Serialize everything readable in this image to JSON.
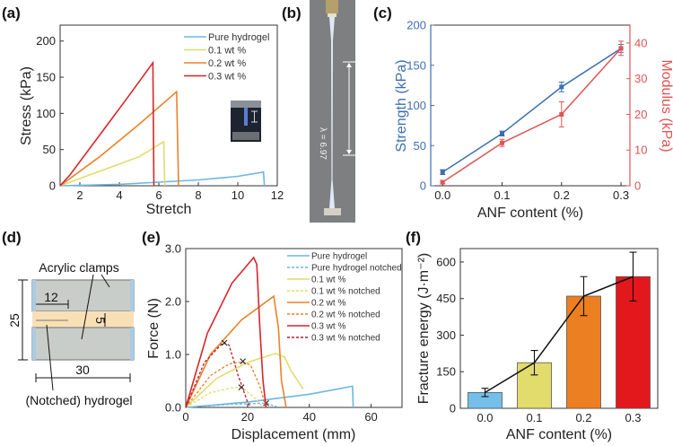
{
  "panel_labels": {
    "a": "(a)",
    "b": "(b)",
    "c": "(c)",
    "d": "(d)",
    "e": "(e)",
    "f": "(f)"
  },
  "photo_b": {
    "stretch_text": "λ = 6.97"
  },
  "diagram_d": {
    "clamps_label": "Acrylic clamps",
    "hydrogel_label": "(Notched) hydrogel",
    "dim_height": "25",
    "dim_notch": "12",
    "dim_gap": "5",
    "dim_width": "30",
    "colors": {
      "clamp": "#c9cdc9",
      "edge": "#a9cbe6",
      "hydrogel": "#f8e0b6"
    }
  },
  "chart_data": [
    {
      "type": "line",
      "xlabel": "Stretch",
      "ylabel": "Stress (kPa)",
      "xlim": [
        1,
        12
      ],
      "ylim": [
        0,
        222
      ],
      "xticks": [
        "2",
        "4",
        "6",
        "8",
        "10",
        "12"
      ],
      "xtick_values": [
        2,
        4,
        6,
        8,
        10,
        12
      ],
      "yticks": [
        "0",
        "50",
        "100",
        "150",
        "200"
      ],
      "ytick_values": [
        0,
        50,
        100,
        150,
        200
      ],
      "grid": false,
      "legend": "top-right",
      "series": [
        {
          "name": "Pure hydrogel",
          "color": "#6cb7e2",
          "points": [
            [
              1,
              0
            ],
            [
              4,
              2
            ],
            [
              6,
              5
            ],
            [
              8,
              8
            ],
            [
              10,
              13
            ],
            [
              11.3,
              19
            ],
            [
              11.35,
              0
            ]
          ]
        },
        {
          "name": "0.1 wt %",
          "color": "#e2dc6c",
          "points": [
            [
              1,
              0
            ],
            [
              3,
              20
            ],
            [
              5,
              40
            ],
            [
              6.25,
              61
            ],
            [
              6.3,
              0
            ]
          ]
        },
        {
          "name": "0.2 wt %",
          "color": "#ea8229",
          "points": [
            [
              1,
              0
            ],
            [
              3,
              40
            ],
            [
              5,
              85
            ],
            [
              6.9,
              130
            ],
            [
              7.0,
              0
            ]
          ]
        },
        {
          "name": "0.3 wt %",
          "color": "#d7262b",
          "points": [
            [
              1,
              0
            ],
            [
              1.5,
              15
            ],
            [
              3,
              70
            ],
            [
              4.5,
              125
            ],
            [
              5.7,
              170
            ],
            [
              5.75,
              0
            ]
          ]
        }
      ]
    },
    {
      "type": "line",
      "xlabel": "ANF content (%)",
      "ylabel": "Strength (kPa)",
      "y2label": "Modulus (kPa)",
      "xlim": [
        -0.02,
        0.315
      ],
      "ylim": [
        0,
        200
      ],
      "y2lim": [
        0,
        45
      ],
      "xticks": [
        "0.0",
        "0.1",
        "0.2",
        "0.3"
      ],
      "xtick_values": [
        0,
        0.1,
        0.2,
        0.3
      ],
      "yticks": [
        "0",
        "50",
        "100",
        "150",
        "200"
      ],
      "ytick_values": [
        0,
        50,
        100,
        150,
        200
      ],
      "y2ticks": [
        "0",
        "10",
        "20",
        "30",
        "40"
      ],
      "y2tick_values": [
        0,
        10,
        20,
        30,
        40
      ],
      "grid": false,
      "series": [
        {
          "name": "Strength",
          "axis": "left",
          "color": "#3c6fb0",
          "x": [
            0,
            0.1,
            0.2,
            0.3
          ],
          "values": [
            17,
            65,
            123,
            171
          ],
          "errors": [
            3,
            3,
            6,
            5
          ]
        },
        {
          "name": "Modulus",
          "axis": "right",
          "color": "#e05454",
          "x": [
            0,
            0.1,
            0.2,
            0.3
          ],
          "values": [
            1,
            12,
            20,
            38.5
          ],
          "errors": [
            0.5,
            1,
            3.5,
            2
          ]
        }
      ]
    },
    {
      "type": "line",
      "xlabel": "Displacement (mm)",
      "ylabel": "Force (N)",
      "xlim": [
        0,
        70
      ],
      "ylim": [
        0,
        3.0
      ],
      "xticks": [
        "0",
        "20",
        "40",
        "60"
      ],
      "xtick_values": [
        0,
        20,
        40,
        60
      ],
      "yticks": [
        "0.0",
        "1.0",
        "2.0",
        "3.0"
      ],
      "ytick_values": [
        0,
        1,
        2,
        3
      ],
      "grid": false,
      "legend": "top-right",
      "series": [
        {
          "name": "Pure hydrogel",
          "color": "#6cb7e2",
          "dashed": false,
          "points": [
            [
              0,
              0
            ],
            [
              20,
              0.1
            ],
            [
              40,
              0.25
            ],
            [
              54,
              0.4
            ],
            [
              54.2,
              0
            ]
          ]
        },
        {
          "name": "Pure hydrogel notched",
          "color": "#6cb7e2",
          "dashed": true,
          "points": [
            [
              0,
              0
            ],
            [
              15,
              0.06
            ],
            [
              26,
              0.08
            ],
            [
              30,
              0
            ]
          ],
          "break_point": [
            26,
            0.08
          ]
        },
        {
          "name": "0.1 wt %",
          "color": "#e2dc6c",
          "dashed": false,
          "points": [
            [
              0,
              0
            ],
            [
              10,
              0.55
            ],
            [
              20,
              0.85
            ],
            [
              29,
              1.02
            ],
            [
              32,
              0.95
            ],
            [
              34,
              0.7
            ],
            [
              38,
              0.35
            ]
          ]
        },
        {
          "name": "0.1 wt % notched",
          "color": "#e2dc6c",
          "dashed": true,
          "points": [
            [
              0,
              0
            ],
            [
              8,
              0.28
            ],
            [
              15,
              0.37
            ],
            [
              18,
              0.38
            ],
            [
              22,
              0.2
            ],
            [
              25,
              0
            ]
          ],
          "break_point": [
            18,
            0.38
          ]
        },
        {
          "name": "0.2 wt %",
          "color": "#ea8229",
          "dashed": false,
          "points": [
            [
              0,
              0
            ],
            [
              8,
              1.0
            ],
            [
              18,
              1.65
            ],
            [
              28.5,
              2.1
            ],
            [
              30,
              1.5
            ],
            [
              31,
              0.5
            ],
            [
              32.5,
              0
            ]
          ]
        },
        {
          "name": "0.2 wt % notched",
          "color": "#ea8229",
          "dashed": true,
          "points": [
            [
              0,
              0
            ],
            [
              8,
              0.6
            ],
            [
              14,
              0.82
            ],
            [
              18,
              0.86
            ],
            [
              21,
              0.8
            ],
            [
              24,
              0.4
            ],
            [
              26,
              0
            ]
          ],
          "break_point": [
            18.5,
            0.87
          ]
        },
        {
          "name": "0.3 wt %",
          "color": "#d7262b",
          "dashed": false,
          "points": [
            [
              0,
              0
            ],
            [
              7,
              1.4
            ],
            [
              15,
              2.35
            ],
            [
              22,
              2.83
            ],
            [
              23,
              2.7
            ],
            [
              24,
              1.5
            ],
            [
              25,
              0.5
            ],
            [
              26,
              0
            ]
          ]
        },
        {
          "name": "0.3 wt % notched",
          "color": "#b5202b",
          "dashed": true,
          "points": [
            [
              0,
              0
            ],
            [
              6,
              0.85
            ],
            [
              12,
              1.22
            ],
            [
              14,
              1.18
            ],
            [
              17,
              0.6
            ],
            [
              20,
              0.1
            ],
            [
              21,
              0
            ]
          ],
          "break_point": [
            12.5,
            1.22
          ]
        }
      ]
    },
    {
      "type": "bar",
      "xlabel": "ANF content (%)",
      "ylabel": "Fracture energy (J·m⁻²)",
      "categories": [
        "0.0",
        "0.1",
        "0.2",
        "0.3"
      ],
      "values": [
        65,
        187,
        460,
        540
      ],
      "errors": [
        17,
        50,
        80,
        100
      ],
      "colors": [
        "#74bfe9",
        "#e2dc6c",
        "#ec7f22",
        "#e3181d"
      ],
      "ylim": [
        0,
        655
      ],
      "yticks": [
        "0",
        "150",
        "300",
        "450",
        "600"
      ],
      "ytick_values": [
        0,
        150,
        300,
        450,
        600
      ],
      "grid": false,
      "trend_line": true
    }
  ]
}
